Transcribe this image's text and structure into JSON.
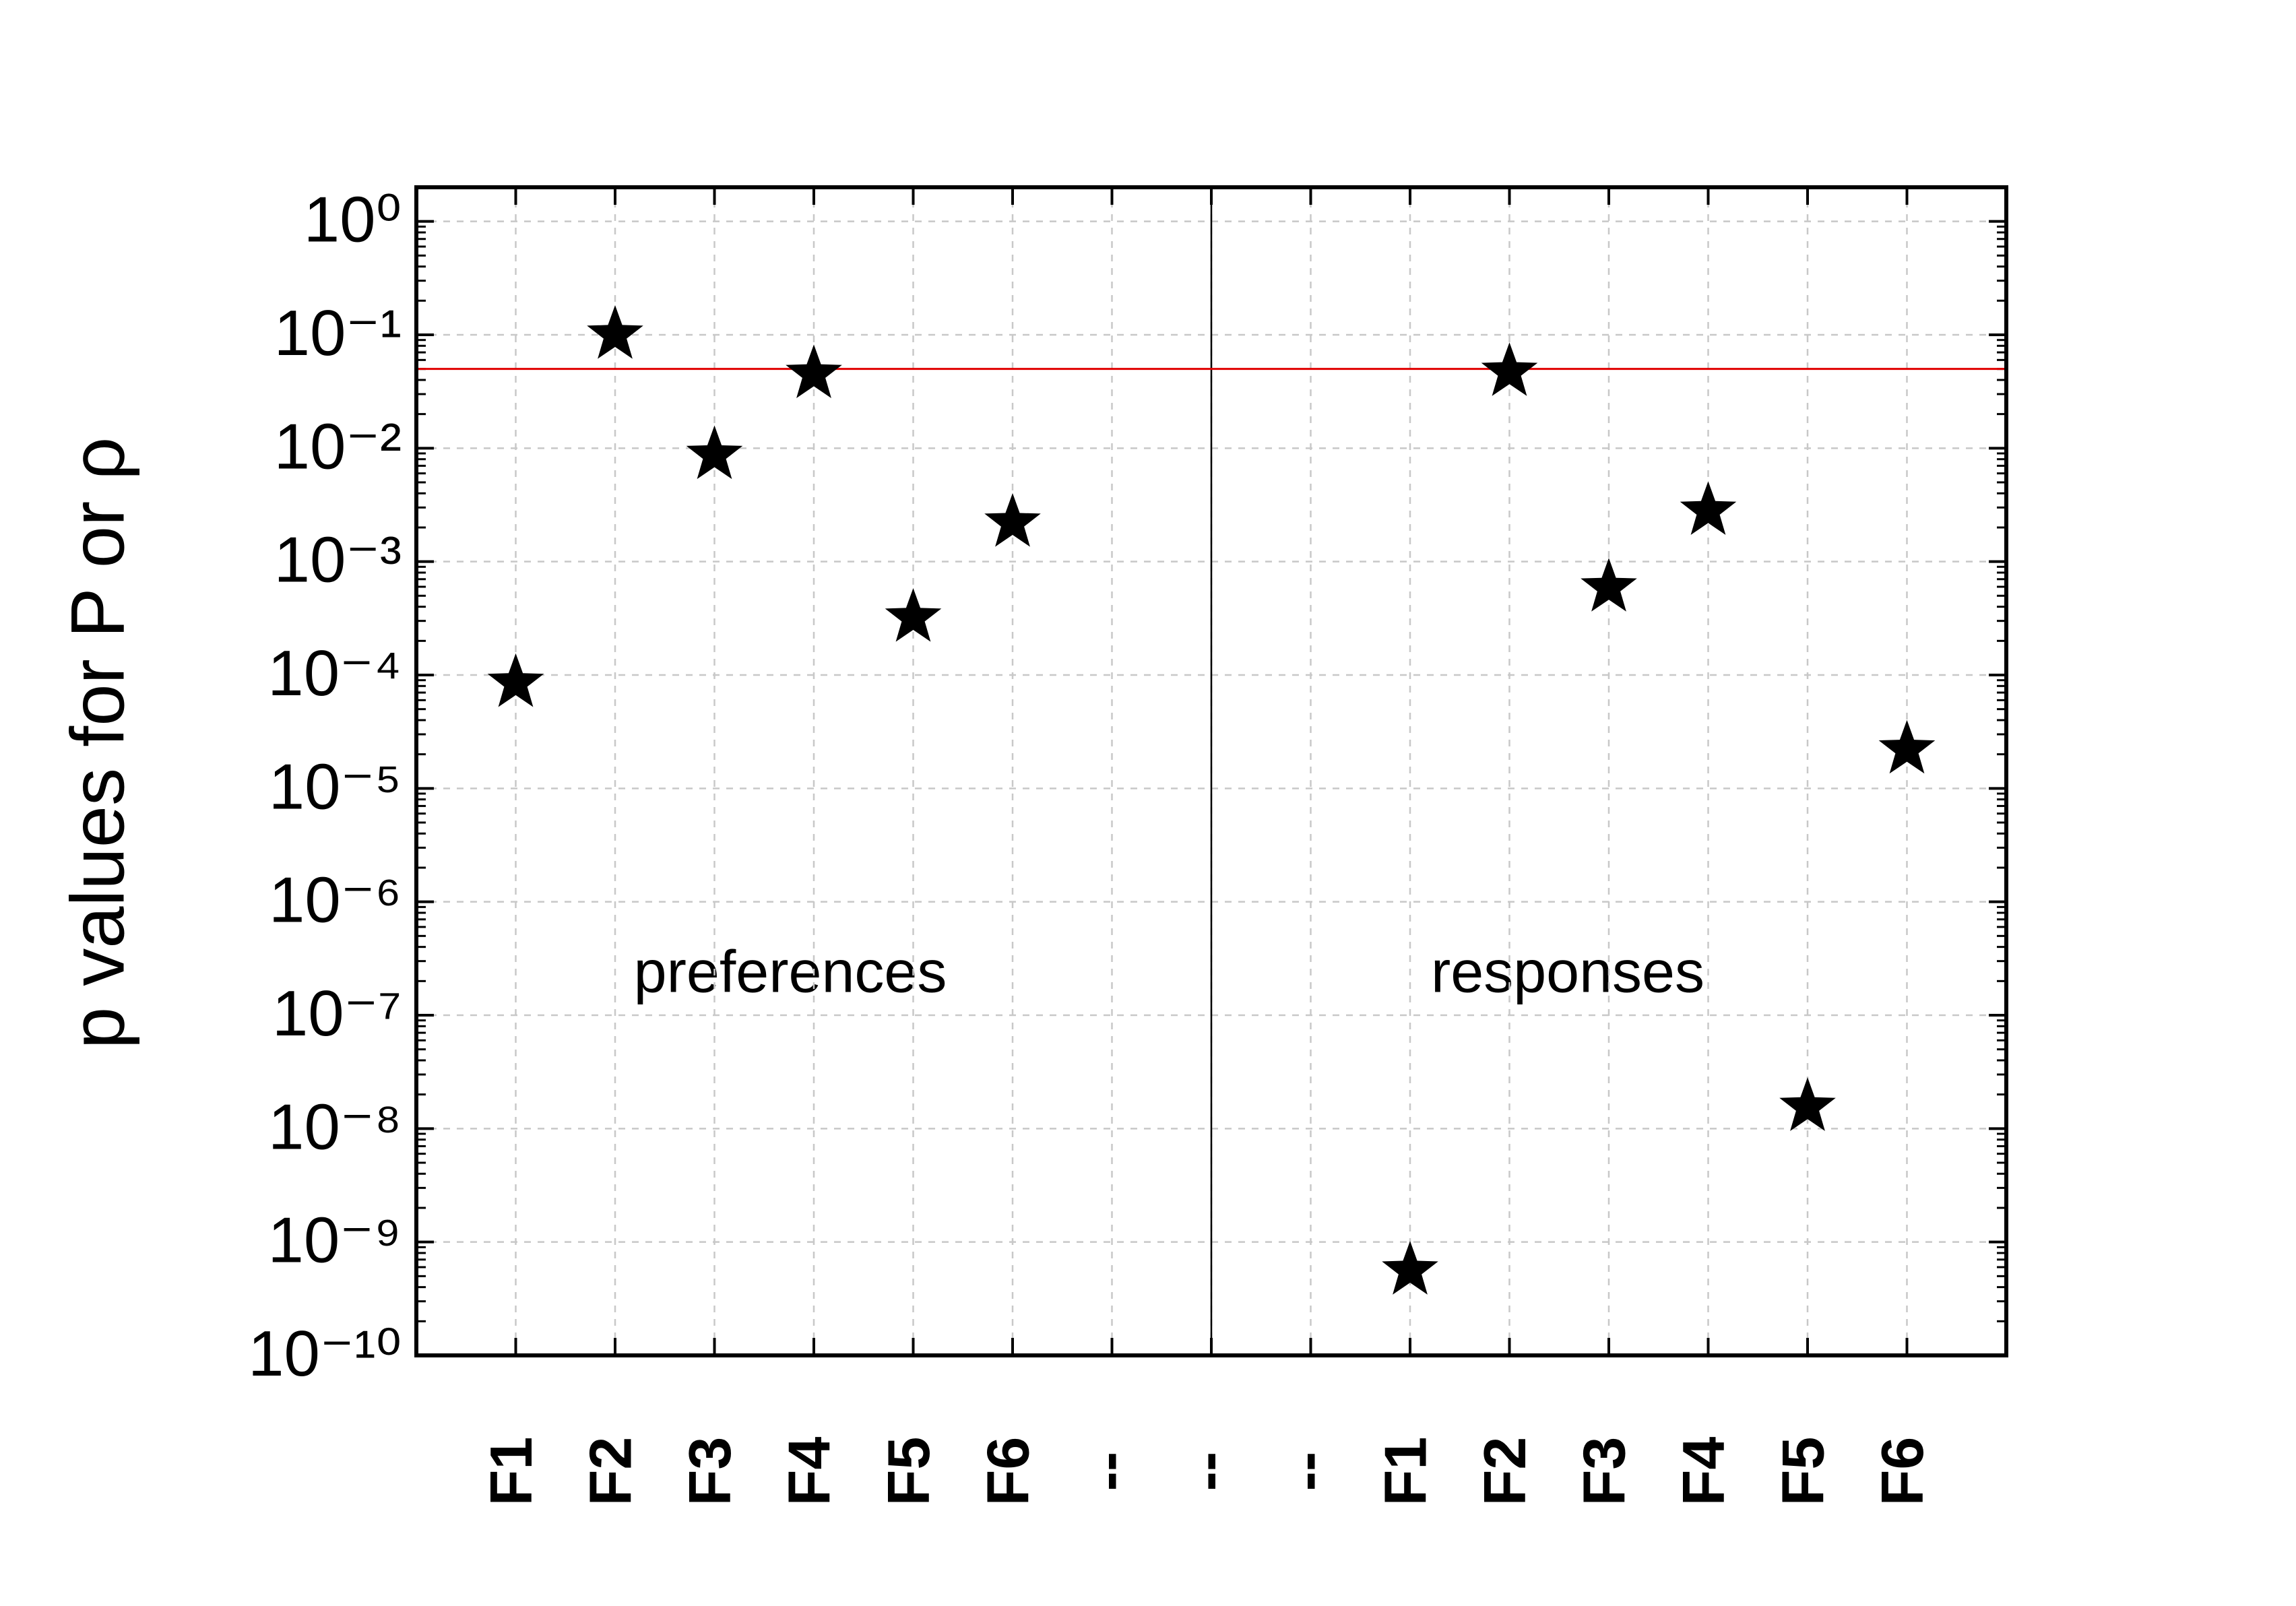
{
  "chart_data": {
    "type": "scatter",
    "y_label": "p values for P or ρ",
    "annotations": [
      "preferences",
      "responses"
    ],
    "categories": [
      "F1",
      "F2",
      "F3",
      "F4",
      "F5",
      "F6",
      "--",
      "--",
      "--",
      "F1",
      "F2",
      "F3",
      "F4",
      "F5",
      "F6"
    ],
    "series": [
      {
        "color": "#000000",
        "values": [
          8.5e-05,
          0.1,
          0.0087,
          0.045,
          0.00032,
          0.0022,
          null,
          null,
          null,
          5.6e-10,
          0.047,
          0.00059,
          0.0028,
          1.55e-08,
          2.2e-05
        ]
      }
    ],
    "log_y": true,
    "ylim": [
      1e-10,
      2
    ],
    "yticks": [
      {
        "value": 1e-10,
        "label": "10⁻¹⁰"
      },
      {
        "value": 1e-09,
        "label": "10⁻⁹"
      },
      {
        "value": 1e-08,
        "label": "10⁻⁸"
      },
      {
        "value": 1e-07,
        "label": "10⁻⁷"
      },
      {
        "value": 1e-06,
        "label": "10⁻⁶"
      },
      {
        "value": 1e-05,
        "label": "10⁻⁵"
      },
      {
        "value": 0.0001,
        "label": "10⁻⁴"
      },
      {
        "value": 0.001,
        "label": "10⁻³"
      },
      {
        "value": 0.01,
        "label": "10⁻²"
      },
      {
        "value": 0.1,
        "label": "10⁻¹"
      },
      {
        "value": 1,
        "label": "10⁰"
      }
    ],
    "threshold": 0.05,
    "threshold_color": "#e00000",
    "grid": true
  }
}
